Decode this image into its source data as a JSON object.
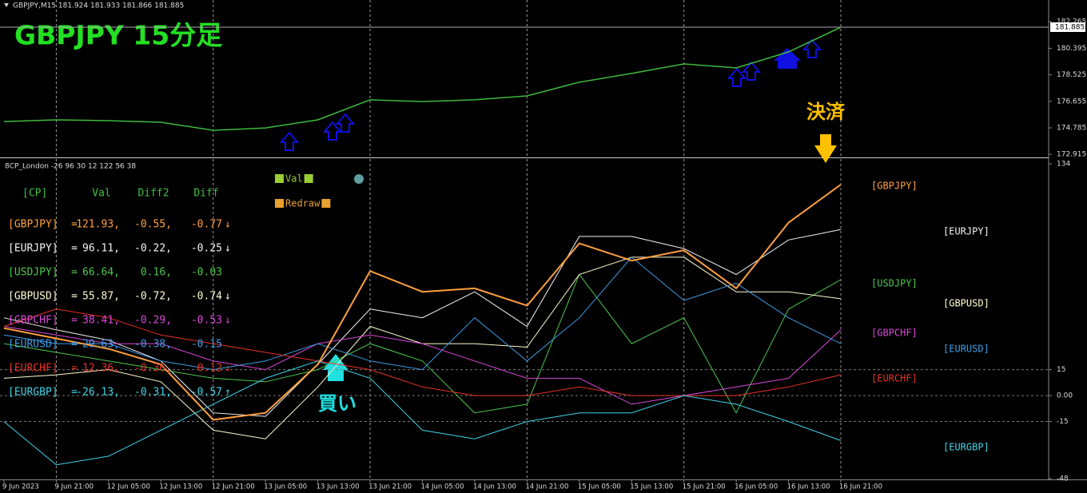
{
  "chart_data": [
    {
      "type": "line",
      "title": "GBPJPY 15分足",
      "subtitle": "GBPJPY,M15 181.924 181.933 181.866 181.885",
      "values": [
        175.23,
        175.35,
        175.29,
        175.18,
        174.61,
        174.78,
        175.35,
        176.76,
        176.64,
        176.76,
        177.04,
        178.0,
        178.62,
        179.29,
        179.01,
        180.14,
        181.88
      ],
      "color": "#3fb83f",
      "last_price": 181.885,
      "ylim": [
        172.7,
        183.8
      ],
      "yticks": [
        172.915,
        174.785,
        176.655,
        178.525,
        180.395,
        182.265
      ]
    },
    {
      "type": "line",
      "title": "8CP_London -26 96 30 12 122 56 38",
      "categories": [
        "9 Jun 2023",
        "9 Jun 21:00",
        "12 Jun 05:00",
        "12 Jun 13:00",
        "12 Jun 21:00",
        "13 Jun 05:00",
        "13 Jun 13:00",
        "13 Jun 21:00",
        "14 Jun 05:00",
        "14 Jun 13:00",
        "14 Jun 21:00",
        "15 Jun 05:00",
        "15 Jun 13:00",
        "15 Jun 21:00",
        "16 Jun 05:00",
        "16 Jun 13:00",
        "16 Jun 21:00"
      ],
      "series": [
        {
          "name": "[GBPJPY]",
          "color": "#ffa040",
          "values": [
            39,
            33,
            27,
            18,
            -14,
            -10,
            18,
            72,
            60,
            62,
            52,
            88,
            78,
            84,
            62,
            100,
            122
          ]
        },
        {
          "name": "[EURJPY]",
          "color": "#f4f4f4",
          "values": [
            45,
            38,
            32,
            20,
            -10,
            -12,
            18,
            50,
            45,
            60,
            40,
            92,
            92,
            85,
            70,
            90,
            96
          ]
        },
        {
          "name": "[USDJPY]",
          "color": "#4cc84c",
          "values": [
            30,
            25,
            20,
            15,
            10,
            8,
            15,
            30,
            20,
            -10,
            -5,
            70,
            30,
            45,
            -10,
            50,
            67
          ]
        },
        {
          "name": "[GBPUSD]",
          "color": "#fffad0",
          "values": [
            10,
            12,
            15,
            8,
            -20,
            -25,
            5,
            40,
            30,
            30,
            28,
            70,
            80,
            80,
            60,
            60,
            56
          ]
        },
        {
          "name": "[GBPCHF]",
          "color": "#d848d8",
          "values": [
            40,
            35,
            30,
            30,
            20,
            15,
            30,
            35,
            30,
            20,
            10,
            10,
            -5,
            0,
            5,
            10,
            38
          ]
        },
        {
          "name": "[EURUSD]",
          "color": "#3e9ce6",
          "values": [
            35,
            30,
            30,
            20,
            15,
            20,
            30,
            20,
            15,
            45,
            20,
            45,
            80,
            55,
            65,
            45,
            30
          ]
        },
        {
          "name": "[EURCHF]",
          "color": "#e63224",
          "values": [
            40,
            50,
            45,
            35,
            30,
            25,
            20,
            15,
            5,
            0,
            0,
            5,
            0,
            0,
            0,
            5,
            12
          ]
        },
        {
          "name": "[EURGBP]",
          "color": "#40d4e6",
          "values": [
            -15,
            -40,
            -35,
            -20,
            -5,
            10,
            20,
            10,
            -20,
            -25,
            -15,
            -10,
            -10,
            0,
            -5,
            -15,
            -26
          ]
        }
      ],
      "ylim": [
        -48,
        134
      ],
      "yticks": [
        -48,
        -15,
        {
          "value": 0,
          "label": "0.00"
        },
        15,
        134
      ],
      "legend": [
        {
          "label": "Val",
          "color": "#9acd32"
        },
        {
          "label": "Redraw",
          "color": "#e8a030"
        }
      ],
      "table": {
        "header": [
          "[CP]",
          "Val",
          "Diff2",
          "Diff"
        ],
        "rows": [
          [
            "[GBPJPY]",
            "=",
            "121.93,",
            "-0.55,",
            "-0.77",
            "↓"
          ],
          [
            "[EURJPY]",
            "=",
            "96.11,",
            "-0.22,",
            "-0.25",
            "↓"
          ],
          [
            "[USDJPY]",
            "=",
            "66.64,",
            "0.16,",
            "-0.03"
          ],
          [
            "[GBPUSD]",
            "=",
            "55.87,",
            "-0.72,",
            "-0.74",
            "↓"
          ],
          [
            "[GBPCHF]",
            "=",
            "38.41,",
            "-0.29,",
            "-0.53",
            "↓"
          ],
          [
            "[EURUSD]",
            "=",
            "29.63,",
            "-0.38,",
            "-0.15"
          ],
          [
            "[EURCHF]",
            "=",
            "12.36,",
            "-0.36,",
            "0.12",
            "↓"
          ],
          [
            "[EURGBP]",
            "=",
            "-26.13,",
            "-0.31,",
            "-0.57",
            "↑"
          ]
        ]
      },
      "annotations": [
        "買い",
        "決済"
      ]
    }
  ]
}
